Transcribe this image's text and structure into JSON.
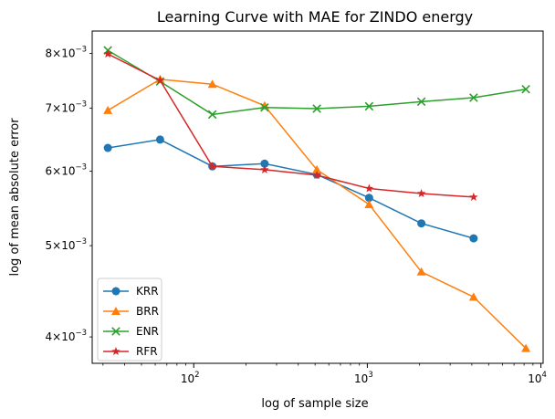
{
  "chart_data": {
    "type": "line",
    "title": "Learning Curve with MAE for ZINDO energy",
    "xlabel": "log of sample size",
    "ylabel": "log of mean absolute error",
    "x_scale": "log",
    "y_scale": "log",
    "xlim": [
      26,
      10300
    ],
    "ylim": [
      0.00375,
      0.00845
    ],
    "x_ticks": [
      {
        "value": 100,
        "base": "10",
        "exp": "2"
      },
      {
        "value": 1000,
        "base": "10",
        "exp": "3"
      },
      {
        "value": 10000,
        "base": "10",
        "exp": "4"
      }
    ],
    "y_ticks": [
      {
        "value": 0.004,
        "mant": "4",
        "base": "10",
        "exp": "−3"
      },
      {
        "value": 0.005,
        "mant": "5",
        "base": "10",
        "exp": "−3"
      },
      {
        "value": 0.006,
        "mant": "6",
        "base": "10",
        "exp": "−3"
      },
      {
        "value": 0.007,
        "mant": "7",
        "base": "10",
        "exp": "−3"
      },
      {
        "value": 0.008,
        "mant": "8",
        "base": "10",
        "exp": "−3"
      }
    ],
    "grid": false,
    "legend_position": "lower-left",
    "series": [
      {
        "name": "KRR",
        "color": "#1f77b4",
        "marker": "circle",
        "x": [
          32,
          64,
          128,
          256,
          512,
          1024,
          2048,
          4096
        ],
        "y": [
          0.00635,
          0.00648,
          0.00607,
          0.00611,
          0.00595,
          0.00562,
          0.00528,
          0.00509
        ]
      },
      {
        "name": "BRR",
        "color": "#ff7f0e",
        "marker": "triangle",
        "x": [
          32,
          64,
          128,
          256,
          512,
          1024,
          2048,
          4096,
          8192
        ],
        "y": [
          0.00696,
          0.00751,
          0.00742,
          0.00704,
          0.00602,
          0.00553,
          0.00469,
          0.00441,
          0.00389
        ]
      },
      {
        "name": "ENR",
        "color": "#2ca02c",
        "marker": "x",
        "x": [
          32,
          64,
          128,
          256,
          512,
          1024,
          2048,
          4096,
          8192
        ],
        "y": [
          0.00806,
          0.00747,
          0.00689,
          0.00701,
          0.00699,
          0.00703,
          0.00711,
          0.00718,
          0.00733
        ]
      },
      {
        "name": "RFR",
        "color": "#d62728",
        "marker": "star",
        "x": [
          32,
          64,
          128,
          256,
          512,
          1024,
          2048,
          4096
        ],
        "y": [
          0.00799,
          0.00749,
          0.00607,
          0.00602,
          0.00594,
          0.00575,
          0.00568,
          0.00563
        ]
      }
    ]
  }
}
